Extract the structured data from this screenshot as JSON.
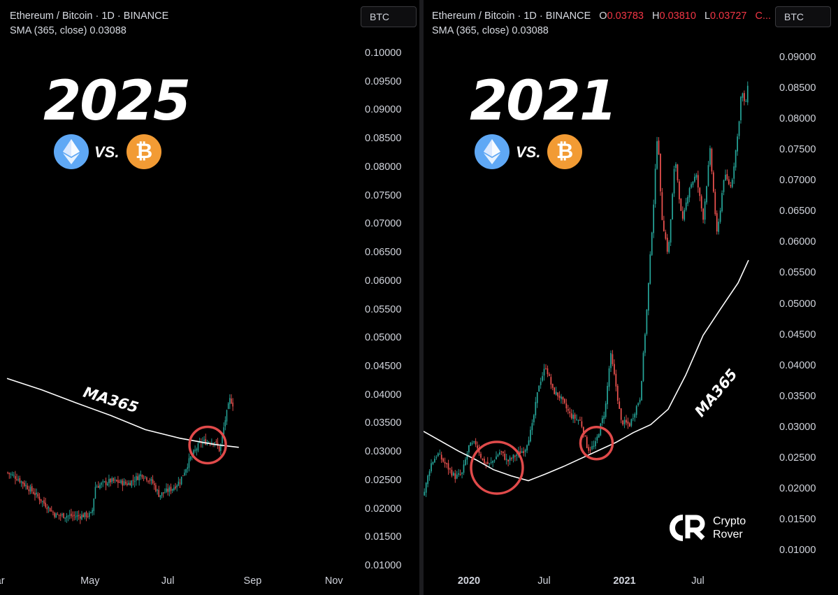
{
  "chart_data": [
    {
      "type": "candlestick",
      "title": "2025",
      "header": "Ethereum / Bitcoin · 1D · BINANCE",
      "indicator": "SMA (365, close)  0.03088",
      "currency": "BTC",
      "ylim": [
        0.01,
        0.1
      ],
      "yticks": [
        "0.10000",
        "0.09500",
        "0.09000",
        "0.08500",
        "0.08000",
        "0.07500",
        "0.07000",
        "0.06500",
        "0.06000",
        "0.05500",
        "0.05000",
        "0.04500",
        "0.04000",
        "0.03500",
        "0.03000",
        "0.02500",
        "0.02000",
        "0.01500",
        "0.01000"
      ],
      "xticks": [
        {
          "label": "ar",
          "pos": -0.02,
          "bold": false
        },
        {
          "label": "May",
          "pos": 0.24,
          "bold": false
        },
        {
          "label": "Jul",
          "pos": 0.465,
          "bold": false
        },
        {
          "label": "Sep",
          "pos": 0.71,
          "bold": false
        },
        {
          "label": "Nov",
          "pos": 0.945,
          "bold": false
        }
      ],
      "price_path": [
        [
          0,
          0.0265
        ],
        [
          0.03,
          0.0255
        ],
        [
          0.08,
          0.0228
        ],
        [
          0.14,
          0.019
        ],
        [
          0.2,
          0.0188
        ],
        [
          0.245,
          0.0191
        ],
        [
          0.255,
          0.024
        ],
        [
          0.3,
          0.025
        ],
        [
          0.35,
          0.0245
        ],
        [
          0.39,
          0.0262
        ],
        [
          0.42,
          0.0248
        ],
        [
          0.44,
          0.0225
        ],
        [
          0.48,
          0.0238
        ],
        [
          0.5,
          0.025
        ],
        [
          0.53,
          0.029
        ],
        [
          0.56,
          0.0318
        ],
        [
          0.6,
          0.032
        ],
        [
          0.615,
          0.0303
        ],
        [
          0.63,
          0.0355
        ],
        [
          0.645,
          0.0395
        ],
        [
          0.655,
          0.0382
        ]
      ],
      "ma_path": [
        [
          0,
          0.043
        ],
        [
          0.1,
          0.041
        ],
        [
          0.2,
          0.0387
        ],
        [
          0.3,
          0.0365
        ],
        [
          0.4,
          0.034
        ],
        [
          0.5,
          0.0325
        ],
        [
          0.6,
          0.0314
        ],
        [
          0.67,
          0.0309
        ]
      ],
      "ma_label": "MA365",
      "circles": [
        {
          "x": 0.58,
          "y": 0.0313
        }
      ]
    },
    {
      "type": "candlestick",
      "title": "2021",
      "header": "Ethereum / Bitcoin · 1D · BINANCE",
      "ohlc": {
        "o": "0.03783",
        "h": "0.03810",
        "l": "0.03727",
        "c": "C..."
      },
      "indicator": "SMA (365, close)  0.03088",
      "currency": "BTC",
      "ylim": [
        0.01,
        0.09
      ],
      "yticks": [
        "0.09000",
        "0.08500",
        "0.08000",
        "0.07500",
        "0.07000",
        "0.06500",
        "0.06000",
        "0.05500",
        "0.05000",
        "0.04500",
        "0.04000",
        "0.03500",
        "0.03000",
        "0.02500",
        "0.02000",
        "0.01500",
        "0.01000"
      ],
      "xticks": [
        {
          "label": "2020",
          "pos": 0.13,
          "bold": true
        },
        {
          "label": "Jul",
          "pos": 0.345,
          "bold": false
        },
        {
          "label": "2021",
          "pos": 0.575,
          "bold": true
        },
        {
          "label": "Jul",
          "pos": 0.785,
          "bold": false
        }
      ],
      "price_path": [
        [
          0,
          0.019
        ],
        [
          0.02,
          0.024
        ],
        [
          0.04,
          0.0258
        ],
        [
          0.07,
          0.0235
        ],
        [
          0.09,
          0.022
        ],
        [
          0.11,
          0.0225
        ],
        [
          0.13,
          0.027
        ],
        [
          0.15,
          0.0275
        ],
        [
          0.17,
          0.0245
        ],
        [
          0.19,
          0.024
        ],
        [
          0.22,
          0.0262
        ],
        [
          0.24,
          0.0245
        ],
        [
          0.27,
          0.0258
        ],
        [
          0.29,
          0.0265
        ],
        [
          0.31,
          0.03
        ],
        [
          0.33,
          0.037
        ],
        [
          0.35,
          0.04
        ],
        [
          0.37,
          0.036
        ],
        [
          0.39,
          0.035
        ],
        [
          0.42,
          0.032
        ],
        [
          0.45,
          0.031
        ],
        [
          0.47,
          0.0265
        ],
        [
          0.49,
          0.027
        ],
        [
          0.52,
          0.033
        ],
        [
          0.535,
          0.042
        ],
        [
          0.55,
          0.037
        ],
        [
          0.565,
          0.031
        ],
        [
          0.59,
          0.0305
        ],
        [
          0.62,
          0.035
        ],
        [
          0.64,
          0.05
        ],
        [
          0.66,
          0.068
        ],
        [
          0.67,
          0.079
        ],
        [
          0.68,
          0.065
        ],
        [
          0.7,
          0.058
        ],
        [
          0.72,
          0.074
        ],
        [
          0.74,
          0.063
        ],
        [
          0.76,
          0.069
        ],
        [
          0.78,
          0.071
        ],
        [
          0.8,
          0.064
        ],
        [
          0.82,
          0.075
        ],
        [
          0.84,
          0.061
        ],
        [
          0.86,
          0.071
        ],
        [
          0.88,
          0.069
        ],
        [
          0.9,
          0.078
        ],
        [
          0.91,
          0.085
        ],
        [
          0.92,
          0.082
        ],
        [
          0.93,
          0.086
        ]
      ],
      "ma_path": [
        [
          0,
          0.0294
        ],
        [
          0.05,
          0.0278
        ],
        [
          0.1,
          0.0262
        ],
        [
          0.15,
          0.0248
        ],
        [
          0.2,
          0.0232
        ],
        [
          0.25,
          0.0222
        ],
        [
          0.3,
          0.0214
        ],
        [
          0.35,
          0.0225
        ],
        [
          0.4,
          0.0237
        ],
        [
          0.45,
          0.025
        ],
        [
          0.5,
          0.0263
        ],
        [
          0.55,
          0.0276
        ],
        [
          0.6,
          0.0292
        ],
        [
          0.65,
          0.0305
        ],
        [
          0.7,
          0.033
        ],
        [
          0.75,
          0.0385
        ],
        [
          0.8,
          0.045
        ],
        [
          0.85,
          0.0493
        ],
        [
          0.9,
          0.0535
        ],
        [
          0.93,
          0.0572
        ]
      ],
      "ma_label": "MA365",
      "circles": [
        {
          "x": 0.21,
          "y": 0.0235
        },
        {
          "x": 0.495,
          "y": 0.0275
        }
      ]
    }
  ],
  "coins": {
    "eth": "eth-icon",
    "btc": "btc-icon",
    "btc_symbol": "₿",
    "vs": "VS."
  },
  "colors": {
    "up": "#26a69a",
    "down": "#ef5350",
    "ma": "#ffffff",
    "circle": "#e04a4a"
  },
  "branding": {
    "line1": "Crypto",
    "line2": "Rover",
    "logo": "CR"
  }
}
